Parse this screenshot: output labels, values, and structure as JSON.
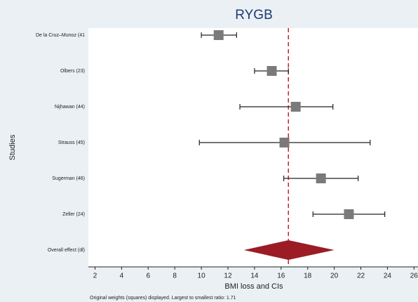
{
  "chart_data": {
    "type": "forest",
    "title": "RYGB",
    "x_label": "BMI loss and CIs",
    "y_label": "Studies",
    "footnote": "Original weights (squares) displayed. Largest to smallest ratio: 1.71",
    "categories": [
      "De la Cruz–Munoz (41",
      "Olbers (23)",
      "Nijhawan (44)",
      "Strauss (45)",
      "Sugerman (46)",
      "Zeller (24)"
    ],
    "values": [
      11.3,
      15.3,
      17.1,
      16.25,
      19.0,
      21.1
    ],
    "lower": [
      10.0,
      14.0,
      12.9,
      9.85,
      16.2,
      18.4
    ],
    "upper": [
      12.65,
      16.55,
      19.9,
      22.7,
      21.8,
      23.8
    ],
    "overall": {
      "label": "Overall effect (dl)",
      "value": 16.55,
      "lower": 13.2,
      "upper": 20.0
    },
    "marker_color": "#7a7a7a",
    "diamond_color": "#9b1c24",
    "reference_color": "#cc2222",
    "xlim": [
      1.5,
      26.3
    ],
    "xticks": [
      2,
      4,
      6,
      8,
      10,
      12,
      14,
      16,
      18,
      20,
      22,
      24,
      26
    ]
  }
}
